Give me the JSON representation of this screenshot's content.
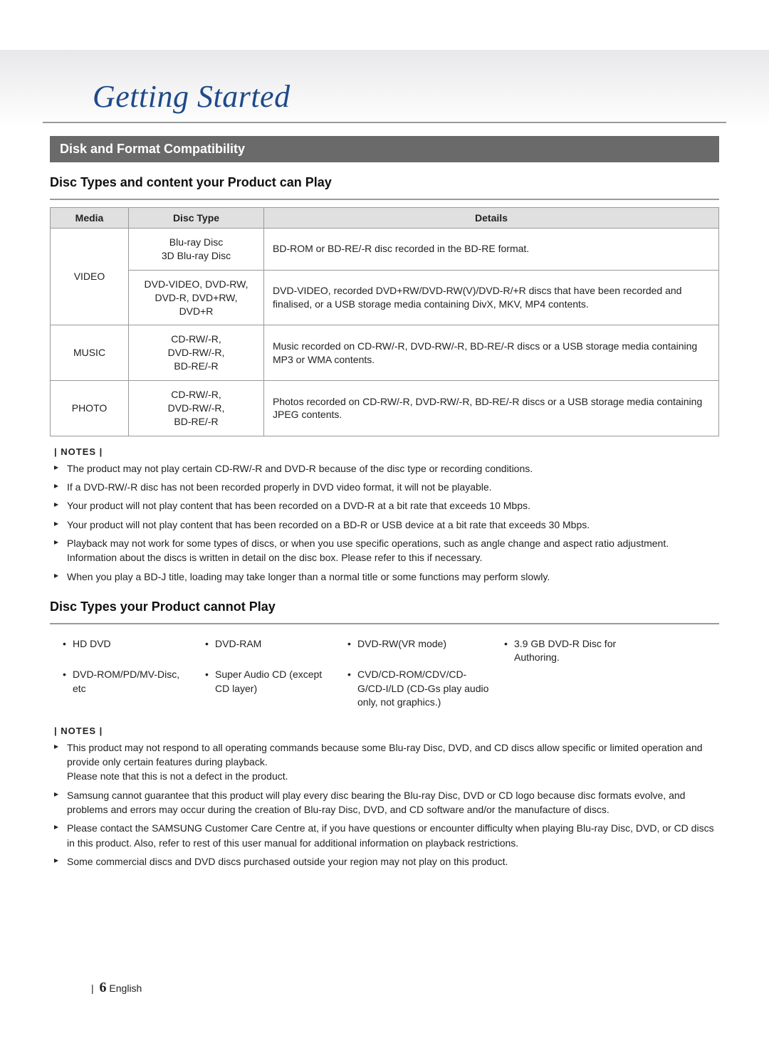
{
  "chapter": {
    "title": "Getting Started"
  },
  "section1": {
    "bar": "Disk and Format Compatibility",
    "subheading": "Disc Types and content your Product can Play"
  },
  "table": {
    "headers": {
      "media": "Media",
      "type": "Disc Type",
      "details": "Details"
    },
    "rows": {
      "video": {
        "media": "VIDEO",
        "r1": {
          "type": "Blu-ray Disc\n3D Blu-ray Disc",
          "details": "BD-ROM or BD-RE/-R disc recorded in the BD-RE format."
        },
        "r2": {
          "type": "DVD-VIDEO, DVD-RW,\nDVD-R, DVD+RW,\nDVD+R",
          "details": "DVD-VIDEO, recorded DVD+RW/DVD-RW(V)/DVD-R/+R discs that have been recorded and finalised, or a USB storage media containing DivX, MKV, MP4 contents."
        }
      },
      "music": {
        "media": "MUSIC",
        "type": "CD-RW/-R,\nDVD-RW/-R,\nBD-RE/-R",
        "details": "Music recorded on CD-RW/-R, DVD-RW/-R, BD-RE/-R discs or a USB storage media containing MP3 or WMA contents."
      },
      "photo": {
        "media": "PHOTO",
        "type": "CD-RW/-R,\nDVD-RW/-R,\nBD-RE/-R",
        "details": "Photos recorded on CD-RW/-R, DVD-RW/-R, BD-RE/-R discs or a USB storage media containing JPEG contents."
      }
    }
  },
  "notes1": {
    "label": "| NOTES |",
    "items": [
      "The product may not play certain CD-RW/-R and DVD-R because of the disc type or recording conditions.",
      "If a DVD-RW/-R disc has not been recorded properly in DVD video format, it will not be playable.",
      "Your product will not play content that has been recorded on a DVD-R at a bit rate that exceeds 10 Mbps.",
      "Your product will not play content that has been recorded on a BD-R or USB device at a bit rate that exceeds 30 Mbps.",
      "Playback may not work for some types of discs, or when you use specific operations, such as angle change and aspect ratio adjustment. Information about the discs is written in detail on the disc box. Please refer to this if necessary.",
      "When you play a BD-J title, loading may take longer than a normal title or some functions may perform slowly."
    ]
  },
  "section2": {
    "subheading": "Disc Types your Product cannot Play"
  },
  "cannot": [
    "HD DVD",
    "DVD-RAM",
    "DVD-RW(VR mode)",
    "3.9 GB DVD-R Disc for Authoring.",
    "DVD-ROM/PD/MV-Disc, etc",
    "Super Audio CD (except CD layer)",
    "CVD/CD-ROM/CDV/CD-G/CD-I/LD (CD-Gs play audio only, not graphics.)"
  ],
  "notes2": {
    "label": "| NOTES |",
    "items": [
      "This product may not respond to all operating commands because some Blu-ray Disc, DVD, and CD discs allow specific or limited operation and provide only certain features during playback.\nPlease note that this is not a defect in the product.",
      "Samsung cannot guarantee that this product will play every disc bearing the Blu-ray Disc, DVD or CD logo because disc formats evolve, and problems and errors may occur during the creation of Blu-ray Disc, DVD, and CD software and/or the manufacture of discs.",
      "Please contact the SAMSUNG Customer Care Centre at, if you have questions or encounter difficulty when playing Blu-ray Disc, DVD, or CD discs in this product. Also, refer to rest of this user manual for additional information on playback restrictions.",
      "Some commercial discs and DVD discs purchased outside your region may not play on this product."
    ]
  },
  "footer": {
    "pipe": "|",
    "page": "6",
    "lang": "English"
  },
  "colors": {
    "chapter_title": "#1e4a8a",
    "section_bar_bg": "#6a6a6a",
    "section_bar_text": "#ffffff",
    "table_border": "#999999",
    "table_header_bg": "#e0e0e0",
    "body_text": "#222222",
    "rule": "#9a9a9a",
    "page_bg": "#ffffff",
    "header_band_top": "#e8e8ea"
  }
}
